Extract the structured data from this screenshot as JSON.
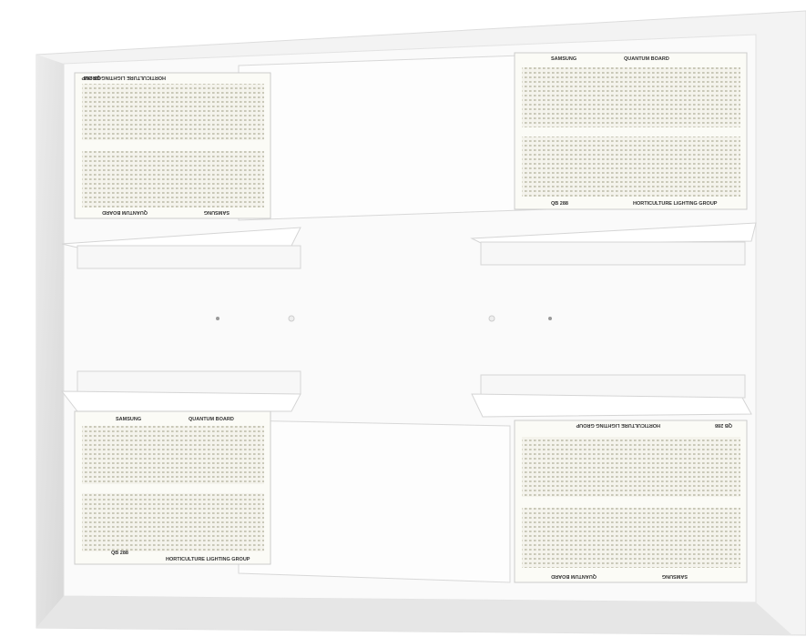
{
  "boards": [
    {
      "brand": "HORTICULTURE LIGHTING GROUP",
      "product": "QUANTUM BOARD",
      "maker": "SAMSUNG",
      "model": "QB 288"
    },
    {
      "brand": "HORTICULTURE LIGHTING GROUP",
      "product": "QUANTUM BOARD",
      "maker": "SAMSUNG",
      "model": "QB 288"
    },
    {
      "brand": "HORTICULTURE LIGHTING GROUP",
      "product": "QUANTUM BOARD",
      "maker": "SAMSUNG",
      "model": "QB 288"
    },
    {
      "brand": "HORTICULTURE LIGHTING GROUP",
      "product": "QUANTUM BOARD",
      "maker": "SAMSUNG",
      "model": "QB 288"
    }
  ]
}
